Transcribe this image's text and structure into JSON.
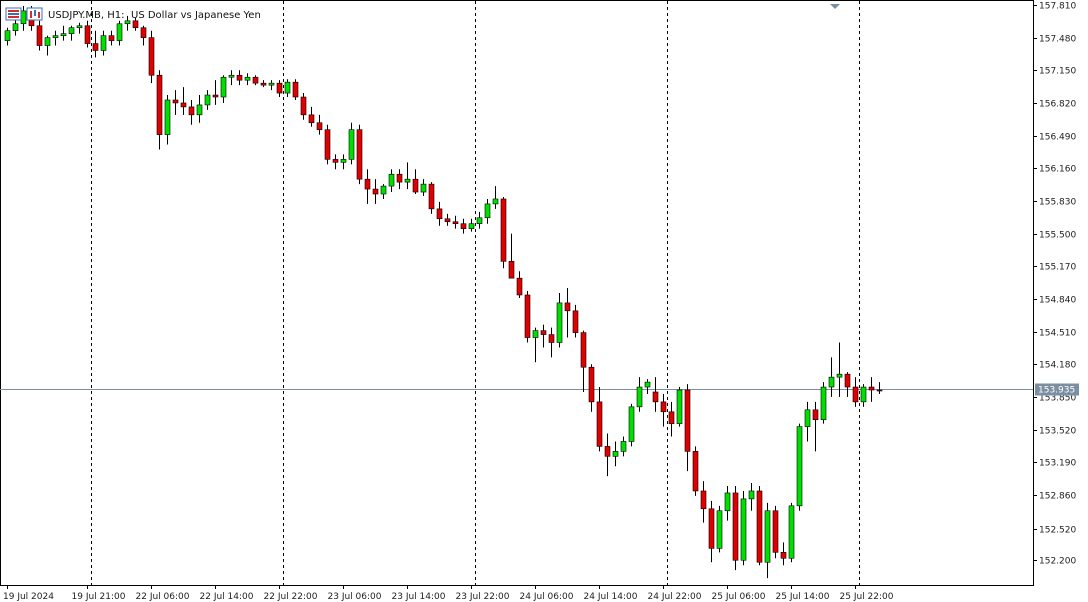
{
  "header": {
    "symbol_period": "USDJPY.MB, H1:",
    "description": "US Dollar vs Japanese Yen",
    "icons": [
      "indicator-list-icon",
      "chart-window-icon"
    ]
  },
  "colors": {
    "background": "#ffffff",
    "bull": "#00e000",
    "bear": "#e00000",
    "wick": "#000000",
    "frame": "#000000",
    "bid_line": "#7b8fa0",
    "bid_label_bg": "#7b8fa0",
    "separator": "#000000"
  },
  "chart_data": {
    "type": "candlestick",
    "ylim": [
      151.95,
      157.85
    ],
    "y_ticks": [
      "157.810",
      "157.480",
      "157.150",
      "156.820",
      "156.490",
      "156.160",
      "155.830",
      "155.500",
      "155.170",
      "154.840",
      "154.510",
      "154.180",
      "153.850",
      "153.520",
      "153.190",
      "152.860",
      "152.520",
      "152.200"
    ],
    "x_ticks": [
      {
        "bar": 0,
        "label": "19 Jul 2024"
      },
      {
        "bar": 10,
        "label": "19 Jul 21:00"
      },
      {
        "bar": 18,
        "label": "22 Jul 06:00"
      },
      {
        "bar": 26,
        "label": "22 Jul 14:00"
      },
      {
        "bar": 34,
        "label": "22 Jul 22:00"
      },
      {
        "bar": 42,
        "label": "23 Jul 06:00"
      },
      {
        "bar": 50,
        "label": "23 Jul 14:00"
      },
      {
        "bar": 58,
        "label": "23 Jul 22:00"
      },
      {
        "bar": 66,
        "label": "24 Jul 06:00"
      },
      {
        "bar": 74,
        "label": "24 Jul 14:00"
      },
      {
        "bar": 82,
        "label": "24 Jul 22:00"
      },
      {
        "bar": 90,
        "label": "25 Jul 06:00"
      },
      {
        "bar": 98,
        "label": "25 Jul 14:00"
      },
      {
        "bar": 106,
        "label": "25 Jul 22:00"
      }
    ],
    "day_separators_after_bar": [
      10,
      34,
      58,
      82,
      106
    ],
    "current_price": 153.935,
    "current_price_label": "153.935",
    "grid": false,
    "candles": [
      [
        157.45,
        157.58,
        157.4,
        157.55
      ],
      [
        157.55,
        157.7,
        157.5,
        157.62
      ],
      [
        157.62,
        157.8,
        157.55,
        157.75
      ],
      [
        157.75,
        157.8,
        157.55,
        157.6
      ],
      [
        157.6,
        157.65,
        157.35,
        157.4
      ],
      [
        157.4,
        157.5,
        157.3,
        157.48
      ],
      [
        157.48,
        157.55,
        157.4,
        157.5
      ],
      [
        157.5,
        157.6,
        157.45,
        157.52
      ],
      [
        157.52,
        157.6,
        157.45,
        157.58
      ],
      [
        157.58,
        157.63,
        157.52,
        157.6
      ],
      [
        157.6,
        157.65,
        157.38,
        157.42
      ],
      [
        157.42,
        157.55,
        157.28,
        157.35
      ],
      [
        157.35,
        157.55,
        157.3,
        157.5
      ],
      [
        157.5,
        157.55,
        157.4,
        157.45
      ],
      [
        157.45,
        157.65,
        157.4,
        157.62
      ],
      [
        157.62,
        157.7,
        157.55,
        157.65
      ],
      [
        157.65,
        157.68,
        157.55,
        157.58
      ],
      [
        157.58,
        157.6,
        157.4,
        157.48
      ],
      [
        157.48,
        157.55,
        157.02,
        157.1
      ],
      [
        157.1,
        157.15,
        156.35,
        156.5
      ],
      [
        156.5,
        156.9,
        156.4,
        156.85
      ],
      [
        156.85,
        156.95,
        156.7,
        156.82
      ],
      [
        156.82,
        156.98,
        156.7,
        156.78
      ],
      [
        156.78,
        156.85,
        156.6,
        156.7
      ],
      [
        156.7,
        156.9,
        156.62,
        156.8
      ],
      [
        156.8,
        156.95,
        156.75,
        156.9
      ],
      [
        156.9,
        157.05,
        156.8,
        156.88
      ],
      [
        156.88,
        157.1,
        156.82,
        157.08
      ],
      [
        157.08,
        157.15,
        157.0,
        157.1
      ],
      [
        157.1,
        157.15,
        157.0,
        157.05
      ],
      [
        157.05,
        157.12,
        157.0,
        157.08
      ],
      [
        157.08,
        157.1,
        157.0,
        157.02
      ],
      [
        157.02,
        157.05,
        156.98,
        157.0
      ],
      [
        157.0,
        157.05,
        156.95,
        157.02
      ],
      [
        157.02,
        157.05,
        156.88,
        156.92
      ],
      [
        156.92,
        157.06,
        156.88,
        157.03
      ],
      [
        157.03,
        157.06,
        156.85,
        156.88
      ],
      [
        156.88,
        156.92,
        156.65,
        156.7
      ],
      [
        156.7,
        156.78,
        156.58,
        156.62
      ],
      [
        156.62,
        156.7,
        156.5,
        156.55
      ],
      [
        156.55,
        156.6,
        156.2,
        156.25
      ],
      [
        156.25,
        156.3,
        156.15,
        156.22
      ],
      [
        156.22,
        156.3,
        156.15,
        156.25
      ],
      [
        156.25,
        156.62,
        156.2,
        156.55
      ],
      [
        156.55,
        156.6,
        156.0,
        156.05
      ],
      [
        156.05,
        156.15,
        155.8,
        155.95
      ],
      [
        155.95,
        156.05,
        155.8,
        155.9
      ],
      [
        155.9,
        156.0,
        155.85,
        155.98
      ],
      [
        155.98,
        156.15,
        155.92,
        156.1
      ],
      [
        156.1,
        156.15,
        155.95,
        156.02
      ],
      [
        156.02,
        156.22,
        155.95,
        156.05
      ],
      [
        156.05,
        156.15,
        155.9,
        155.92
      ],
      [
        155.92,
        156.05,
        155.88,
        156.0
      ],
      [
        156.0,
        156.02,
        155.7,
        155.75
      ],
      [
        155.75,
        155.82,
        155.58,
        155.65
      ],
      [
        155.65,
        155.7,
        155.58,
        155.62
      ],
      [
        155.62,
        155.68,
        155.55,
        155.6
      ],
      [
        155.6,
        155.65,
        155.5,
        155.55
      ],
      [
        155.55,
        155.65,
        155.52,
        155.6
      ],
      [
        155.6,
        155.72,
        155.55,
        155.66
      ],
      [
        155.66,
        155.85,
        155.6,
        155.8
      ],
      [
        155.8,
        155.98,
        155.75,
        155.85
      ],
      [
        155.85,
        155.87,
        155.15,
        155.22
      ],
      [
        155.22,
        155.5,
        155.1,
        155.05
      ],
      [
        155.05,
        155.12,
        154.85,
        154.88
      ],
      [
        154.88,
        154.92,
        154.4,
        154.45
      ],
      [
        154.45,
        154.55,
        154.2,
        154.52
      ],
      [
        154.52,
        154.58,
        154.35,
        154.48
      ],
      [
        154.48,
        154.55,
        154.25,
        154.4
      ],
      [
        154.4,
        154.9,
        154.35,
        154.8
      ],
      [
        154.8,
        154.95,
        154.45,
        154.72
      ],
      [
        154.72,
        154.78,
        154.45,
        154.5
      ],
      [
        154.5,
        154.52,
        153.9,
        154.15
      ],
      [
        154.15,
        154.18,
        153.7,
        153.8
      ],
      [
        153.8,
        153.95,
        153.3,
        153.35
      ],
      [
        153.35,
        153.48,
        153.05,
        153.25
      ],
      [
        153.25,
        153.4,
        153.15,
        153.3
      ],
      [
        153.3,
        153.45,
        153.25,
        153.4
      ],
      [
        153.4,
        153.78,
        153.35,
        153.75
      ],
      [
        153.75,
        154.05,
        153.7,
        153.95
      ],
      [
        153.95,
        154.03,
        153.88,
        154.0
      ],
      [
        153.9,
        154.05,
        153.7,
        153.8
      ],
      [
        153.8,
        153.88,
        153.55,
        153.7
      ],
      [
        153.7,
        153.8,
        153.45,
        153.58
      ],
      [
        153.58,
        153.95,
        153.55,
        153.92
      ],
      [
        153.92,
        153.98,
        153.1,
        153.3
      ],
      [
        153.3,
        153.35,
        152.85,
        152.9
      ],
      [
        152.9,
        153.0,
        152.58,
        152.72
      ],
      [
        152.72,
        152.8,
        152.18,
        152.32
      ],
      [
        152.32,
        152.75,
        152.28,
        152.7
      ],
      [
        152.7,
        152.95,
        152.6,
        152.88
      ],
      [
        152.88,
        152.95,
        152.1,
        152.2
      ],
      [
        152.2,
        152.9,
        152.15,
        152.82
      ],
      [
        152.82,
        152.98,
        152.7,
        152.9
      ],
      [
        152.9,
        152.95,
        152.15,
        152.18
      ],
      [
        152.18,
        152.78,
        152.02,
        152.7
      ],
      [
        152.7,
        152.75,
        152.22,
        152.28
      ],
      [
        152.28,
        152.38,
        152.15,
        152.22
      ],
      [
        152.22,
        152.78,
        152.18,
        152.75
      ],
      [
        152.75,
        153.58,
        152.7,
        153.55
      ],
      [
        153.55,
        153.8,
        153.4,
        153.72
      ],
      [
        153.72,
        153.8,
        153.3,
        153.62
      ],
      [
        153.62,
        154.0,
        153.58,
        153.95
      ],
      [
        153.95,
        154.25,
        153.85,
        154.05
      ],
      [
        154.05,
        154.4,
        153.85,
        154.08
      ],
      [
        154.08,
        154.1,
        153.85,
        153.95
      ],
      [
        153.95,
        154.05,
        153.75,
        153.8
      ],
      [
        153.8,
        153.98,
        153.75,
        153.95
      ],
      [
        153.95,
        154.05,
        153.8,
        153.92
      ],
      [
        153.92,
        154.0,
        153.88,
        153.91
      ]
    ]
  }
}
